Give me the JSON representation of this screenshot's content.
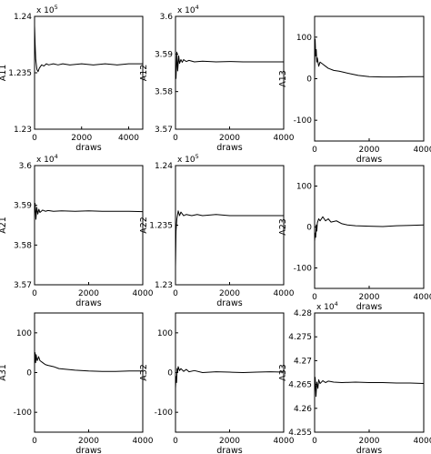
{
  "chart_data": [
    {
      "type": "line",
      "id": "A11",
      "ylabel": "A11",
      "xlabel": "draws",
      "y_exponent": "x 10",
      "y_exponent_power": "5",
      "xlim": [
        0,
        4600
      ],
      "ylim": [
        1.23,
        1.24
      ],
      "xticks": [
        0,
        2000,
        4000
      ],
      "xtick_labels": [
        "0",
        "2000",
        "4000"
      ],
      "yticks": [
        1.23,
        1.235,
        1.24
      ],
      "ytick_labels": [
        "1.23",
        "1.235",
        "1.24"
      ],
      "series": [
        {
          "x": [
            0,
            25,
            50,
            100,
            150,
            200,
            300,
            400,
            500,
            600,
            800,
            1000,
            1200,
            1500,
            2000,
            2500,
            3000,
            3500,
            4000,
            4600
          ],
          "y": [
            1.2392,
            1.2375,
            1.2362,
            1.2353,
            1.2351,
            1.2354,
            1.2357,
            1.2356,
            1.2358,
            1.2357,
            1.2358,
            1.2357,
            1.2358,
            1.2357,
            1.2358,
            1.2357,
            1.2358,
            1.2357,
            1.2358,
            1.2358
          ]
        }
      ]
    },
    {
      "type": "line",
      "id": "A12",
      "ylabel": "A12",
      "xlabel": "draws",
      "y_exponent": "x 10",
      "y_exponent_power": "4",
      "xlim": [
        0,
        4000
      ],
      "ylim": [
        3.57,
        3.6
      ],
      "xticks": [
        0,
        2000,
        4000
      ],
      "xtick_labels": [
        "0",
        "2000",
        "4000"
      ],
      "yticks": [
        3.57,
        3.58,
        3.59,
        3.6
      ],
      "ytick_labels": [
        "3.57",
        "3.58",
        "3.59",
        "3.6"
      ],
      "series": [
        {
          "x": [
            0,
            20,
            50,
            80,
            120,
            150,
            200,
            250,
            300,
            400,
            500,
            700,
            1000,
            1500,
            2000,
            2500,
            3000,
            3500,
            4000
          ],
          "y": [
            3.585,
            3.5835,
            3.5905,
            3.5855,
            3.5895,
            3.5875,
            3.5885,
            3.5878,
            3.5885,
            3.588,
            3.5883,
            3.5879,
            3.5881,
            3.5879,
            3.588,
            3.5879,
            3.5879,
            3.5879,
            3.5879
          ]
        }
      ]
    },
    {
      "type": "line",
      "id": "A13",
      "ylabel": "A13",
      "xlabel": "draws",
      "xlim": [
        0,
        4000
      ],
      "ylim": [
        -150,
        150
      ],
      "xticks": [
        0,
        2000,
        4000
      ],
      "xtick_labels": [
        "0",
        "2000",
        "4000"
      ],
      "yticks": [
        -100,
        0,
        100
      ],
      "ytick_labels": [
        "-100",
        "0",
        "100"
      ],
      "series": [
        {
          "x": [
            0,
            20,
            40,
            60,
            80,
            100,
            150,
            200,
            300,
            400,
            500,
            700,
            900,
            1100,
            1300,
            1600,
            2000,
            2500,
            3000,
            3500,
            4000
          ],
          "y": [
            20,
            95,
            55,
            70,
            40,
            50,
            30,
            40,
            35,
            30,
            25,
            20,
            18,
            15,
            12,
            8,
            5,
            4,
            4,
            5,
            5
          ]
        }
      ]
    },
    {
      "type": "line",
      "id": "A21",
      "ylabel": "A21",
      "xlabel": "draws",
      "y_exponent": "x 10",
      "y_exponent_power": "4",
      "xlim": [
        0,
        4000
      ],
      "ylim": [
        3.57,
        3.6
      ],
      "xticks": [
        0,
        2000,
        4000
      ],
      "xtick_labels": [
        "0",
        "2000",
        "4000"
      ],
      "yticks": [
        3.57,
        3.58,
        3.59,
        3.6
      ],
      "ytick_labels": [
        "3.57",
        "3.58",
        "3.59",
        "3.6"
      ],
      "series": [
        {
          "x": [
            0,
            20,
            50,
            80,
            120,
            160,
            200,
            300,
            400,
            500,
            700,
            1000,
            1500,
            2000,
            2500,
            3000,
            3500,
            4000
          ],
          "y": [
            3.588,
            3.5905,
            3.5865,
            3.5895,
            3.5878,
            3.589,
            3.5882,
            3.5888,
            3.5885,
            3.5887,
            3.5885,
            3.5886,
            3.5885,
            3.5886,
            3.5885,
            3.5885,
            3.5885,
            3.5884
          ]
        }
      ]
    },
    {
      "type": "line",
      "id": "A22",
      "ylabel": "A22",
      "xlabel": "draws",
      "y_exponent": "x 10",
      "y_exponent_power": "5",
      "xlim": [
        0,
        4000
      ],
      "ylim": [
        1.23,
        1.24
      ],
      "xticks": [
        0,
        2000,
        4000
      ],
      "xtick_labels": [
        "0",
        "2000",
        "4000"
      ],
      "yticks": [
        1.23,
        1.235,
        1.24
      ],
      "ytick_labels": [
        "1.23",
        "1.235",
        "1.24"
      ],
      "series": [
        {
          "x": [
            0,
            20,
            50,
            100,
            150,
            200,
            300,
            400,
            600,
            800,
            1000,
            1500,
            2000,
            2500,
            3000,
            3500,
            4000
          ],
          "y": [
            1.2315,
            1.2345,
            1.2355,
            1.2362,
            1.2358,
            1.2361,
            1.2358,
            1.2359,
            1.2358,
            1.2359,
            1.2358,
            1.2359,
            1.2358,
            1.2358,
            1.2358,
            1.2358,
            1.2358
          ]
        }
      ]
    },
    {
      "type": "line",
      "id": "A23",
      "ylabel": "A23",
      "xlabel": "draws",
      "xlim": [
        0,
        4000
      ],
      "ylim": [
        -150,
        150
      ],
      "xticks": [
        0,
        2000,
        4000
      ],
      "xtick_labels": [
        "0",
        "2000",
        "4000"
      ],
      "yticks": [
        -100,
        0,
        100
      ],
      "ytick_labels": [
        "-100",
        "0",
        "100"
      ],
      "series": [
        {
          "x": [
            0,
            20,
            40,
            60,
            80,
            100,
            150,
            200,
            300,
            400,
            500,
            600,
            800,
            1000,
            1200,
            1500,
            2000,
            2500,
            3000,
            3500,
            4000
          ],
          "y": [
            -35,
            -15,
            -25,
            5,
            -10,
            10,
            20,
            15,
            25,
            15,
            20,
            12,
            15,
            8,
            5,
            3,
            2,
            1,
            3,
            4,
            5
          ]
        }
      ]
    },
    {
      "type": "line",
      "id": "A31",
      "ylabel": "A31",
      "xlabel": "draws",
      "xlim": [
        0,
        4000
      ],
      "ylim": [
        -150,
        150
      ],
      "xticks": [
        0,
        2000,
        4000
      ],
      "xtick_labels": [
        "0",
        "2000",
        "4000"
      ],
      "yticks": [
        -100,
        0,
        100
      ],
      "ytick_labels": [
        "-100",
        "0",
        "100"
      ],
      "series": [
        {
          "x": [
            0,
            20,
            40,
            60,
            80,
            100,
            150,
            200,
            300,
            400,
            500,
            700,
            900,
            1200,
            1500,
            2000,
            2500,
            3000,
            3500,
            4000
          ],
          "y": [
            20,
            50,
            25,
            45,
            35,
            30,
            40,
            30,
            25,
            20,
            18,
            15,
            10,
            8,
            6,
            4,
            3,
            3,
            4,
            4
          ]
        }
      ]
    },
    {
      "type": "line",
      "id": "A32",
      "ylabel": "A32",
      "xlabel": "draws",
      "xlim": [
        0,
        4000
      ],
      "ylim": [
        -150,
        150
      ],
      "xticks": [
        0,
        2000,
        4000
      ],
      "xtick_labels": [
        "0",
        "2000",
        "4000"
      ],
      "yticks": [
        -100,
        0,
        100
      ],
      "ytick_labels": [
        "-100",
        "0",
        "100"
      ],
      "series": [
        {
          "x": [
            0,
            20,
            40,
            60,
            80,
            100,
            150,
            200,
            300,
            400,
            500,
            700,
            1000,
            1500,
            2000,
            2500,
            3000,
            3500,
            4000
          ],
          "y": [
            -40,
            -10,
            -25,
            10,
            0,
            15,
            5,
            10,
            3,
            8,
            2,
            5,
            0,
            2,
            1,
            0,
            1,
            2,
            1
          ]
        }
      ]
    },
    {
      "type": "line",
      "id": "A33",
      "ylabel": "A33",
      "xlabel": "draws",
      "y_exponent": "x 10",
      "y_exponent_power": "4",
      "xlim": [
        0,
        4000
      ],
      "ylim": [
        4.255,
        4.28
      ],
      "xticks": [
        0,
        2000,
        4000
      ],
      "xtick_labels": [
        "0",
        "2000",
        "4000"
      ],
      "yticks": [
        4.255,
        4.26,
        4.265,
        4.27,
        4.275,
        4.28
      ],
      "ytick_labels": [
        "4.255",
        "4.26",
        "4.265",
        "4.27",
        "4.275",
        "4.28"
      ],
      "series": [
        {
          "x": [
            0,
            20,
            50,
            80,
            120,
            150,
            200,
            300,
            400,
            500,
            700,
            1000,
            1500,
            2000,
            2500,
            3000,
            3500,
            4000
          ],
          "y": [
            4.2635,
            4.2665,
            4.2625,
            4.2655,
            4.2642,
            4.266,
            4.2652,
            4.2658,
            4.2654,
            4.2657,
            4.2655,
            4.2654,
            4.2655,
            4.2654,
            4.2654,
            4.2653,
            4.2653,
            4.2652
          ]
        }
      ]
    }
  ]
}
